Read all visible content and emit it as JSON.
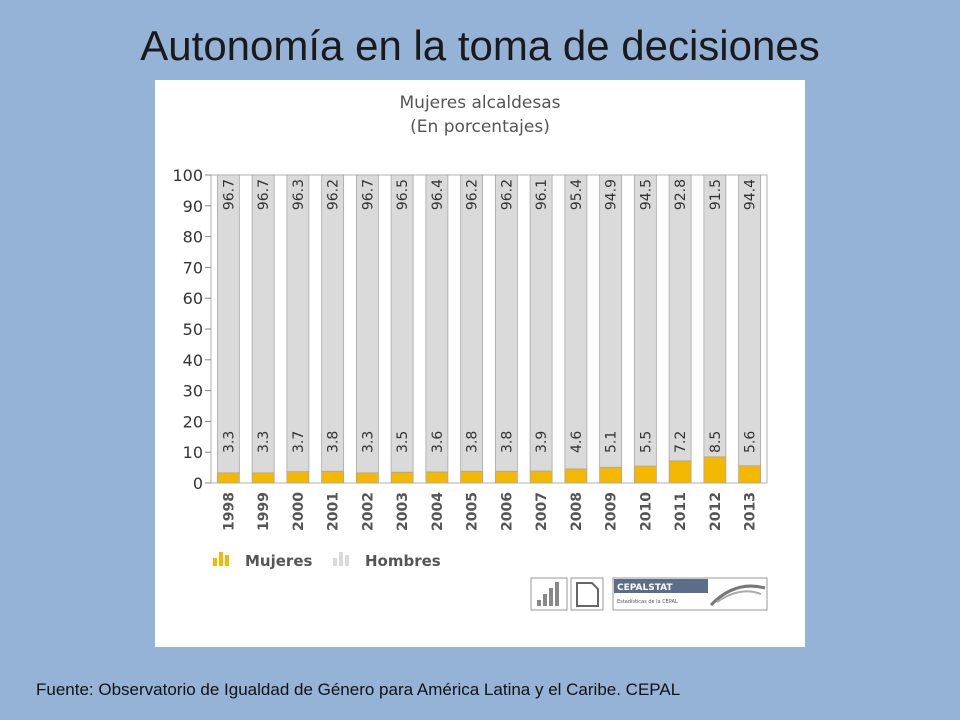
{
  "slide": {
    "title": "Autonomía en la toma de decisiones",
    "source": "Fuente: Observatorio de Igualdad de Género para América Latina y el Caribe. CEPAL"
  },
  "logo": {
    "brand": "CEPALSTAT",
    "tagline": "Estadísticas de la CEPAL"
  },
  "chart_data": {
    "type": "bar",
    "stacked": true,
    "title": "Mujeres alcaldesas",
    "subtitle": "(En porcentajes)",
    "categories": [
      "1998",
      "1999",
      "2000",
      "2001",
      "2002",
      "2003",
      "2004",
      "2005",
      "2006",
      "2007",
      "2008",
      "2009",
      "2010",
      "2011",
      "2012",
      "2013"
    ],
    "series": [
      {
        "name": "Mujeres",
        "color": "#f5b800",
        "values": [
          3.3,
          3.3,
          3.7,
          3.8,
          3.3,
          3.5,
          3.6,
          3.8,
          3.8,
          3.9,
          4.6,
          5.1,
          5.5,
          7.2,
          8.5,
          5.6
        ]
      },
      {
        "name": "Hombres",
        "color": "#dadada",
        "values": [
          96.7,
          96.7,
          96.3,
          96.2,
          96.7,
          96.5,
          96.4,
          96.2,
          96.2,
          96.1,
          95.4,
          94.9,
          94.5,
          92.8,
          91.5,
          94.4
        ]
      }
    ],
    "ylim": [
      0,
      100
    ],
    "yticks": [
      0,
      10,
      20,
      30,
      40,
      50,
      60,
      70,
      80,
      90,
      100
    ],
    "grid": false,
    "legend": "bottom-left"
  }
}
